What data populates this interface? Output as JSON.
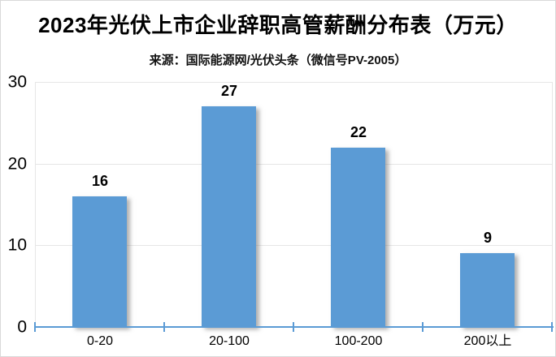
{
  "header": {
    "title": "2023年光伏上市企业辞职高管薪酬分布表（万元）",
    "source": "来源：国际能源网/光伏头条（微信号PV-2005）"
  },
  "colors": {
    "bar": "#5B9BD5",
    "axis": "#5B9BD5",
    "gridline": "#e6e6e6",
    "text": "#000000"
  },
  "chart_data": {
    "type": "bar",
    "title": "2023年光伏上市企业辞职高管薪酬分布表（万元）",
    "source": "来源：国际能源网/光伏头条（微信号PV-2005）",
    "categories": [
      "0-20",
      "20-100",
      "100-200",
      "200以上"
    ],
    "values": [
      16,
      27,
      22,
      9
    ],
    "data_labels": [
      "16",
      "27",
      "22",
      "9"
    ],
    "xlabel": "",
    "ylabel": "",
    "ylim": [
      0,
      30
    ],
    "yticks": [
      0,
      10,
      20,
      30
    ],
    "grid": true,
    "legend": "none"
  }
}
